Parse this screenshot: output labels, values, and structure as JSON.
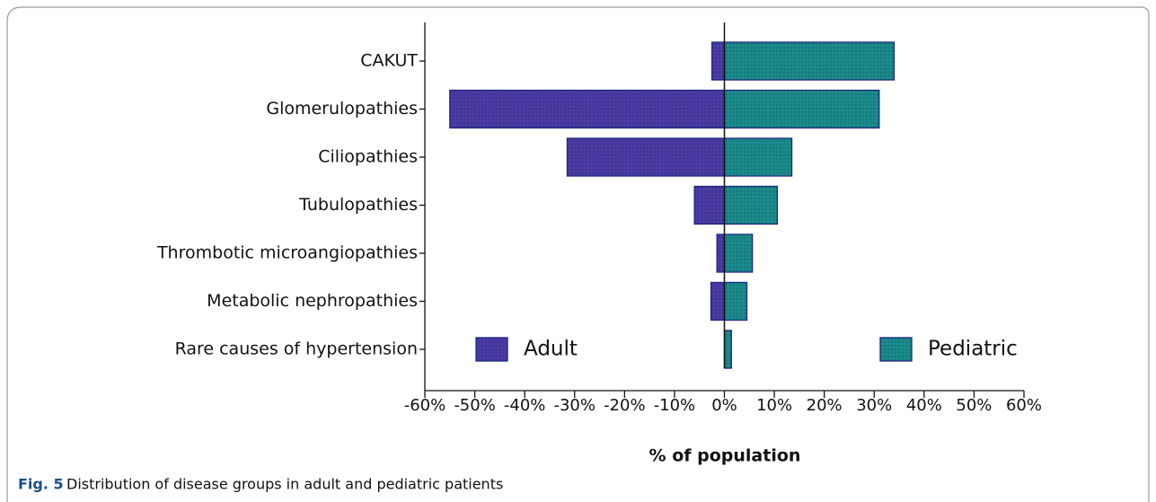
{
  "chart_data": {
    "type": "bar",
    "orientation": "horizontal",
    "xlabel": "% of population",
    "categories": [
      "CAKUT",
      "Glomerulopathies",
      "Ciliopathies",
      "Tubulopathies",
      "Thrombotic microangiopathies",
      "Metabolic nephropathies",
      "Rare causes of hypertension"
    ],
    "series": [
      {
        "name": "Adult",
        "color": "#4a3ba5",
        "values": [
          -2.5,
          -55,
          -31.5,
          -6,
          -1.5,
          -2.7,
          0
        ]
      },
      {
        "name": "Pediatric",
        "color": "#1b8a8c",
        "values": [
          34,
          31,
          13.5,
          10.6,
          5.6,
          4.5,
          1.4
        ]
      }
    ],
    "xlim": [
      -60,
      60
    ],
    "xticks": [
      {
        "value": -60,
        "label": "-60%"
      },
      {
        "value": -50,
        "label": "-50%"
      },
      {
        "value": -40,
        "label": "-40%"
      },
      {
        "value": -30,
        "label": "-30%"
      },
      {
        "value": -20,
        "label": "-20%"
      },
      {
        "value": -10,
        "label": "-10%"
      },
      {
        "value": 0,
        "label": "0%"
      },
      {
        "value": 10,
        "label": "10%"
      },
      {
        "value": 20,
        "label": "20%"
      },
      {
        "value": 30,
        "label": "30%"
      },
      {
        "value": 40,
        "label": "40%"
      },
      {
        "value": 50,
        "label": "50%"
      },
      {
        "value": 60,
        "label": "60%"
      }
    ],
    "legend": "bottom"
  },
  "figure": {
    "label": "Fig. 5",
    "caption": "Distribution of disease groups in adult and pediatric patients"
  }
}
